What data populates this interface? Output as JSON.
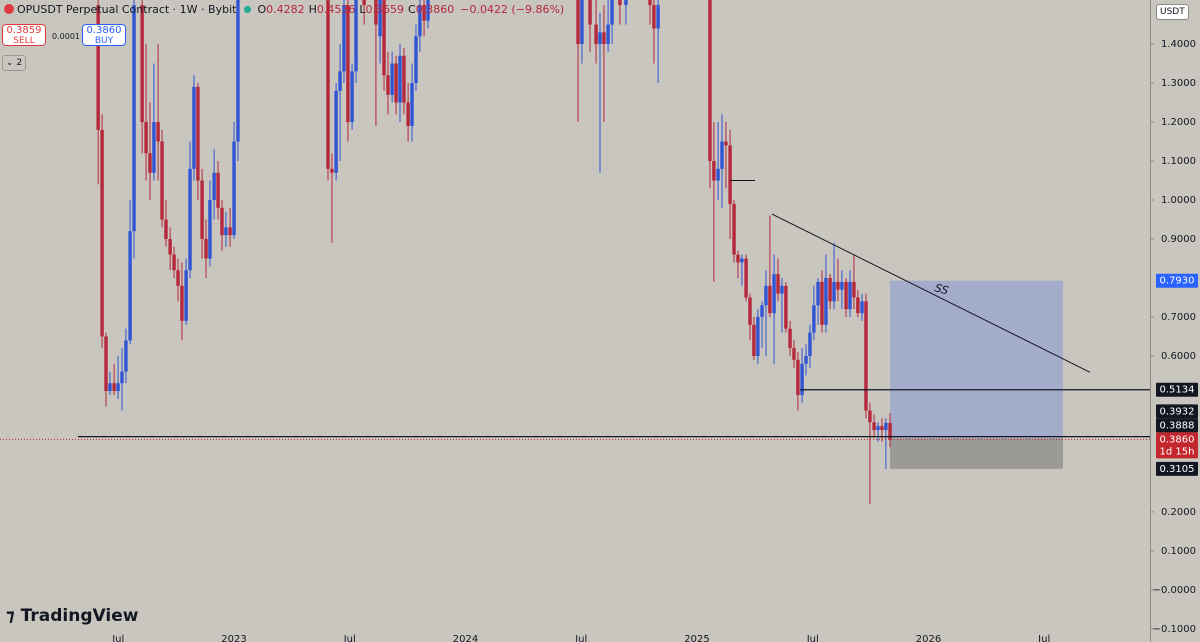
{
  "header": {
    "symbol": "OPUSDT Perpetual Contract · 1W · Bybit",
    "ohlc_keys": [
      "O",
      "H",
      "L",
      "C"
    ],
    "ohlc_values": [
      "0.4282",
      "0.4536",
      "0.3659",
      "0.3860"
    ],
    "change": "−0.0422 (−9.86%)",
    "sell_price": "0.3859",
    "sell": "SELL",
    "spread": "0.0001",
    "buy_price": "0.3860",
    "buy": "BUY",
    "indicators": "2",
    "currency": "USDT",
    "logo": "TradingView"
  },
  "chart_data": {
    "type": "candlestick",
    "up_color": "#2f55d4",
    "down_color": "#b5273a",
    "x": [
      2022.413,
      2022.43,
      2022.447,
      2022.464,
      2022.482,
      2022.499,
      2022.516,
      2022.533,
      2022.551,
      2022.568,
      2022.603,
      2022.62,
      2022.637,
      2022.654,
      2022.672,
      2022.689,
      2022.706,
      2022.724,
      2022.741,
      2022.758,
      2022.775,
      2022.793,
      2022.81,
      2022.827,
      2022.844,
      2022.862,
      2022.879,
      2022.896,
      2022.914,
      2022.931,
      2022.948,
      2022.965,
      2022.983,
      2023.0,
      2023.017,
      2023.406,
      2023.423,
      2023.441,
      2023.458,
      2023.475,
      2023.492,
      2023.51,
      2023.527,
      2023.562,
      2023.613,
      2023.631,
      2023.648,
      2023.665,
      2023.683,
      2023.7,
      2023.717,
      2023.734,
      2023.752,
      2023.769,
      2023.786,
      2023.803,
      2023.821,
      2023.838,
      2024.486,
      2024.503,
      2024.538,
      2024.564,
      2024.581,
      2024.598,
      2024.616,
      2024.633,
      2024.667,
      2024.693,
      2024.797,
      2024.814,
      2024.832,
      2025.056,
      2025.073,
      2025.091,
      2025.108,
      2025.125,
      2025.143,
      2025.16,
      2025.177,
      2025.194,
      2025.212,
      2025.229,
      2025.246,
      2025.263,
      2025.281,
      2025.298,
      2025.315,
      2025.333,
      2025.35,
      2025.367,
      2025.384,
      2025.402,
      2025.419,
      2025.436,
      2025.454,
      2025.471,
      2025.488,
      2025.505,
      2025.523,
      2025.54,
      2025.557,
      2025.575,
      2025.592,
      2025.609,
      2025.626,
      2025.644,
      2025.661,
      2025.678,
      2025.695,
      2025.713,
      2025.73,
      2025.747,
      2025.765,
      2025.782,
      2025.799,
      2025.816,
      2025.834
    ],
    "open": [
      1.5,
      1.18,
      0.65,
      0.51,
      0.53,
      0.51,
      0.53,
      0.56,
      0.64,
      0.92,
      1.5,
      1.2,
      1.12,
      1.07,
      1.2,
      1.15,
      0.95,
      0.9,
      0.86,
      0.82,
      0.78,
      0.69,
      0.82,
      1.08,
      1.29,
      1.05,
      0.9,
      0.85,
      1.0,
      1.07,
      0.98,
      0.91,
      0.93,
      0.91,
      1.15,
      1.55,
      1.08,
      1.07,
      1.28,
      1.33,
      1.5,
      1.2,
      1.33,
      1.55,
      1.55,
      1.42,
      1.55,
      1.32,
      1.27,
      1.35,
      1.25,
      1.37,
      1.25,
      1.19,
      1.3,
      1.42,
      1.5,
      1.46,
      1.55,
      1.4,
      1.55,
      1.45,
      1.4,
      1.43,
      1.4,
      1.45,
      1.55,
      1.5,
      1.55,
      1.5,
      1.44,
      1.55,
      1.1,
      1.05,
      1.08,
      1.15,
      1.14,
      0.99,
      0.86,
      0.84,
      0.85,
      0.75,
      0.68,
      0.6,
      0.7,
      0.73,
      0.78,
      0.71,
      0.81,
      0.76,
      0.78,
      0.67,
      0.62,
      0.59,
      0.5,
      0.58,
      0.6,
      0.66,
      0.73,
      0.79,
      0.68,
      0.8,
      0.74,
      0.79,
      0.77,
      0.79,
      0.72,
      0.79,
      0.75,
      0.71,
      0.74,
      0.46,
      0.43,
      0.41,
      0.42,
      0.41,
      0.4282
    ],
    "high": [
      1.6,
      1.22,
      0.66,
      0.56,
      0.58,
      0.6,
      0.62,
      0.67,
      1.0,
      1.55,
      1.55,
      1.4,
      1.25,
      1.35,
      1.4,
      1.18,
      1.0,
      0.93,
      0.88,
      0.85,
      0.84,
      0.85,
      1.15,
      1.32,
      1.3,
      1.08,
      0.95,
      1.05,
      1.13,
      1.1,
      1.0,
      0.97,
      0.98,
      1.2,
      1.6,
      1.6,
      1.12,
      1.3,
      1.4,
      1.55,
      1.55,
      1.35,
      1.6,
      1.6,
      1.6,
      1.6,
      1.6,
      1.38,
      1.38,
      1.37,
      1.4,
      1.39,
      1.3,
      1.35,
      1.45,
      1.55,
      1.55,
      1.6,
      1.6,
      1.55,
      1.6,
      1.55,
      1.48,
      1.5,
      1.55,
      1.6,
      1.6,
      1.6,
      1.6,
      1.52,
      1.55,
      1.6,
      1.2,
      1.2,
      1.22,
      1.2,
      1.18,
      1.0,
      0.87,
      0.86,
      0.86,
      0.76,
      0.7,
      0.72,
      0.74,
      0.82,
      0.96,
      0.86,
      0.85,
      0.8,
      0.79,
      0.69,
      0.64,
      0.61,
      0.62,
      0.63,
      0.68,
      0.78,
      0.8,
      0.82,
      0.86,
      0.81,
      0.89,
      0.85,
      0.82,
      0.8,
      0.82,
      0.86,
      0.77,
      0.76,
      0.76,
      0.48,
      0.45,
      0.43,
      0.44,
      0.44,
      0.4536
    ],
    "low": [
      1.04,
      0.62,
      0.47,
      0.5,
      0.5,
      0.49,
      0.46,
      0.53,
      0.63,
      0.85,
      1.12,
      1.05,
      1.0,
      1.05,
      1.05,
      0.93,
      0.88,
      0.82,
      0.8,
      0.74,
      0.64,
      0.68,
      0.8,
      1.05,
      1.0,
      0.85,
      0.8,
      0.83,
      0.95,
      0.95,
      0.87,
      0.88,
      0.88,
      0.9,
      1.1,
      1.05,
      0.89,
      1.05,
      1.1,
      1.3,
      1.15,
      1.18,
      1.3,
      1.45,
      1.19,
      1.35,
      1.28,
      1.22,
      1.25,
      1.22,
      1.2,
      1.22,
      1.15,
      1.15,
      1.28,
      1.38,
      1.42,
      1.44,
      1.2,
      1.35,
      1.38,
      1.35,
      1.07,
      1.2,
      1.38,
      1.4,
      1.45,
      1.45,
      1.45,
      1.35,
      1.3,
      1.03,
      0.79,
      1.0,
      0.98,
      1.03,
      0.9,
      0.84,
      0.8,
      0.78,
      0.74,
      0.64,
      0.59,
      0.58,
      0.62,
      0.6,
      0.7,
      0.58,
      0.74,
      0.66,
      0.66,
      0.6,
      0.57,
      0.46,
      0.48,
      0.55,
      0.57,
      0.64,
      0.68,
      0.66,
      0.66,
      0.72,
      0.72,
      0.74,
      0.72,
      0.7,
      0.7,
      0.72,
      0.7,
      0.69,
      0.44,
      0.22,
      0.39,
      0.38,
      0.38,
      0.31,
      0.3659
    ],
    "close": [
      1.18,
      0.65,
      0.51,
      0.53,
      0.51,
      0.53,
      0.56,
      0.64,
      0.92,
      1.5,
      1.2,
      1.12,
      1.07,
      1.2,
      1.15,
      0.95,
      0.9,
      0.86,
      0.82,
      0.78,
      0.69,
      0.82,
      1.08,
      1.29,
      1.05,
      0.9,
      0.85,
      1.0,
      1.07,
      0.98,
      0.91,
      0.93,
      0.91,
      1.15,
      1.55,
      1.08,
      1.07,
      1.28,
      1.33,
      1.5,
      1.2,
      1.33,
      1.55,
      1.5,
      1.45,
      1.55,
      1.32,
      1.27,
      1.35,
      1.25,
      1.37,
      1.25,
      1.19,
      1.3,
      1.42,
      1.5,
      1.46,
      1.55,
      1.4,
      1.52,
      1.45,
      1.4,
      1.43,
      1.4,
      1.45,
      1.55,
      1.5,
      1.55,
      1.5,
      1.44,
      1.5,
      1.1,
      1.05,
      1.08,
      1.15,
      1.14,
      0.99,
      0.86,
      0.84,
      0.85,
      0.75,
      0.68,
      0.6,
      0.7,
      0.73,
      0.78,
      0.71,
      0.81,
      0.76,
      0.78,
      0.67,
      0.62,
      0.59,
      0.5,
      0.58,
      0.6,
      0.66,
      0.73,
      0.79,
      0.68,
      0.8,
      0.74,
      0.79,
      0.77,
      0.79,
      0.72,
      0.79,
      0.75,
      0.71,
      0.74,
      0.46,
      0.43,
      0.41,
      0.42,
      0.41,
      0.4282,
      0.386
    ],
    "xlim": [
      2021.989,
      2026.957
    ],
    "ylim": [
      -0.108,
      1.513
    ],
    "xticks": [
      {
        "value": 2022.5,
        "label": "Jul"
      },
      {
        "value": 2023,
        "label": "2023"
      },
      {
        "value": 2023.5,
        "label": "Jul"
      },
      {
        "value": 2024,
        "label": "2024"
      },
      {
        "value": 2024.5,
        "label": "Jul"
      },
      {
        "value": 2025,
        "label": "2025"
      },
      {
        "value": 2025.5,
        "label": "Jul"
      },
      {
        "value": 2026,
        "label": "2026"
      },
      {
        "value": 2026.5,
        "label": "Jul"
      }
    ],
    "yticks": [
      {
        "value": 1.4,
        "label": "1.4000"
      },
      {
        "value": 1.3,
        "label": "1.3000"
      },
      {
        "value": 1.2,
        "label": "1.2000"
      },
      {
        "value": 1.1,
        "label": "1.1000"
      },
      {
        "value": 1.0,
        "label": "1.0000"
      },
      {
        "value": 0.9,
        "label": "0.9000"
      },
      {
        "value": 0.7,
        "label": "0.7000"
      },
      {
        "value": 0.6,
        "label": "0.6000"
      },
      {
        "value": 0.2,
        "label": "0.2000"
      },
      {
        "value": 0.1,
        "label": "0.1000"
      },
      {
        "value": 0,
        "label": "−0.0000"
      },
      {
        "value": -0.1,
        "label": "−0.1000"
      }
    ],
    "price_labels": [
      {
        "value": 0.793,
        "label": "0.7930",
        "color": "#2962ff"
      },
      {
        "value": 0.5134,
        "label": "0.5134",
        "color": "#131722"
      },
      {
        "value": 0.3932,
        "label": "0.3932",
        "color": "#131722"
      },
      {
        "value": 0.3888,
        "label": "0.3888",
        "color": "#131722"
      },
      {
        "value": 0.386,
        "label": "0.3860",
        "color": "#c2272d",
        "countdown": "1d 15h"
      },
      {
        "value": 0.3105,
        "label": "0.3105",
        "color": "#131722"
      }
    ],
    "drawings": {
      "hlines": [
        {
          "value": 0.3932,
          "from": 2022.326
        },
        {
          "value": 0.5134,
          "from": 2025.445
        }
      ],
      "segment": {
        "x": [
          2025.143,
          2025.251
        ],
        "y": [
          1.05,
          1.05
        ]
      },
      "trendline": {
        "x": [
          2025.324,
          2026.698
        ],
        "y": [
          0.964,
          0.558
        ]
      },
      "position": {
        "from": 2025.834,
        "to": 2026.581,
        "target": 0.793,
        "entry": 0.3888,
        "stop": 0.3105
      },
      "annotation": {
        "text": "SS",
        "x": 2026.028,
        "y": 0.774
      }
    }
  }
}
